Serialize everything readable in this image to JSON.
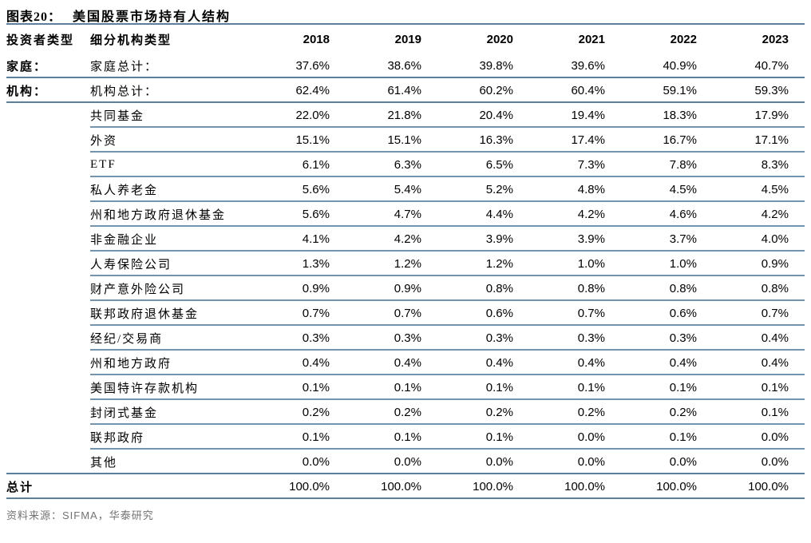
{
  "title": {
    "tag": "图表20：",
    "text": "美国股票市场持有人结构"
  },
  "colors": {
    "rule_full": "#5b7f9d",
    "rule_partial": "#7493ad",
    "text": "#000000",
    "source_text": "#737373"
  },
  "table": {
    "columns": {
      "investor_type": "投资者类型",
      "subtype": "细分机构类型",
      "years": [
        "2018",
        "2019",
        "2020",
        "2021",
        "2022",
        "2023"
      ]
    },
    "rows": [
      {
        "investor_type": "家庭：",
        "label": "家庭总计：",
        "values": [
          "37.6%",
          "38.6%",
          "39.8%",
          "39.6%",
          "40.9%",
          "40.7%"
        ],
        "divider": "full"
      },
      {
        "investor_type": "机构：",
        "label": "机构总计：",
        "values": [
          "62.4%",
          "61.4%",
          "60.2%",
          "60.4%",
          "59.1%",
          "59.3%"
        ],
        "divider": "full"
      },
      {
        "investor_type": "",
        "label": "共同基金",
        "values": [
          "22.0%",
          "21.8%",
          "20.4%",
          "19.4%",
          "18.3%",
          "17.9%"
        ],
        "divider": "partial"
      },
      {
        "investor_type": "",
        "label": "外资",
        "values": [
          "15.1%",
          "15.1%",
          "16.3%",
          "17.4%",
          "16.7%",
          "17.1%"
        ],
        "divider": "partial"
      },
      {
        "investor_type": "",
        "label": "ETF",
        "values": [
          "6.1%",
          "6.3%",
          "6.5%",
          "7.3%",
          "7.8%",
          "8.3%"
        ],
        "divider": "partial"
      },
      {
        "investor_type": "",
        "label": "私人养老金",
        "values": [
          "5.6%",
          "5.4%",
          "5.2%",
          "4.8%",
          "4.5%",
          "4.5%"
        ],
        "divider": "partial"
      },
      {
        "investor_type": "",
        "label": "州和地方政府退休基金",
        "values": [
          "5.6%",
          "4.7%",
          "4.4%",
          "4.2%",
          "4.6%",
          "4.2%"
        ],
        "divider": "partial"
      },
      {
        "investor_type": "",
        "label": "非金融企业",
        "values": [
          "4.1%",
          "4.2%",
          "3.9%",
          "3.9%",
          "3.7%",
          "4.0%"
        ],
        "divider": "partial"
      },
      {
        "investor_type": "",
        "label": "人寿保险公司",
        "values": [
          "1.3%",
          "1.2%",
          "1.2%",
          "1.0%",
          "1.0%",
          "0.9%"
        ],
        "divider": "partial"
      },
      {
        "investor_type": "",
        "label": "财产意外险公司",
        "values": [
          "0.9%",
          "0.9%",
          "0.8%",
          "0.8%",
          "0.8%",
          "0.8%"
        ],
        "divider": "partial"
      },
      {
        "investor_type": "",
        "label": "联邦政府退休基金",
        "values": [
          "0.7%",
          "0.7%",
          "0.6%",
          "0.7%",
          "0.6%",
          "0.7%"
        ],
        "divider": "partial"
      },
      {
        "investor_type": "",
        "label": "经纪/交易商",
        "values": [
          "0.3%",
          "0.3%",
          "0.3%",
          "0.3%",
          "0.3%",
          "0.4%"
        ],
        "divider": "partial"
      },
      {
        "investor_type": "",
        "label": "州和地方政府",
        "values": [
          "0.4%",
          "0.4%",
          "0.4%",
          "0.4%",
          "0.4%",
          "0.4%"
        ],
        "divider": "partial"
      },
      {
        "investor_type": "",
        "label": "美国特许存款机构",
        "values": [
          "0.1%",
          "0.1%",
          "0.1%",
          "0.1%",
          "0.1%",
          "0.1%"
        ],
        "divider": "partial"
      },
      {
        "investor_type": "",
        "label": "封闭式基金",
        "values": [
          "0.2%",
          "0.2%",
          "0.2%",
          "0.2%",
          "0.2%",
          "0.1%"
        ],
        "divider": "partial"
      },
      {
        "investor_type": "",
        "label": "联邦政府",
        "values": [
          "0.1%",
          "0.1%",
          "0.1%",
          "0.0%",
          "0.1%",
          "0.0%"
        ],
        "divider": "partial"
      },
      {
        "investor_type": "",
        "label": "其他",
        "values": [
          "0.0%",
          "0.0%",
          "0.0%",
          "0.0%",
          "0.0%",
          "0.0%"
        ],
        "divider": "full"
      }
    ],
    "total_row": {
      "label": "总计",
      "values": [
        "100.0%",
        "100.0%",
        "100.0%",
        "100.0%",
        "100.0%",
        "100.0%"
      ]
    }
  },
  "footer": {
    "source": "资料来源：SIFMA，华泰研究"
  }
}
